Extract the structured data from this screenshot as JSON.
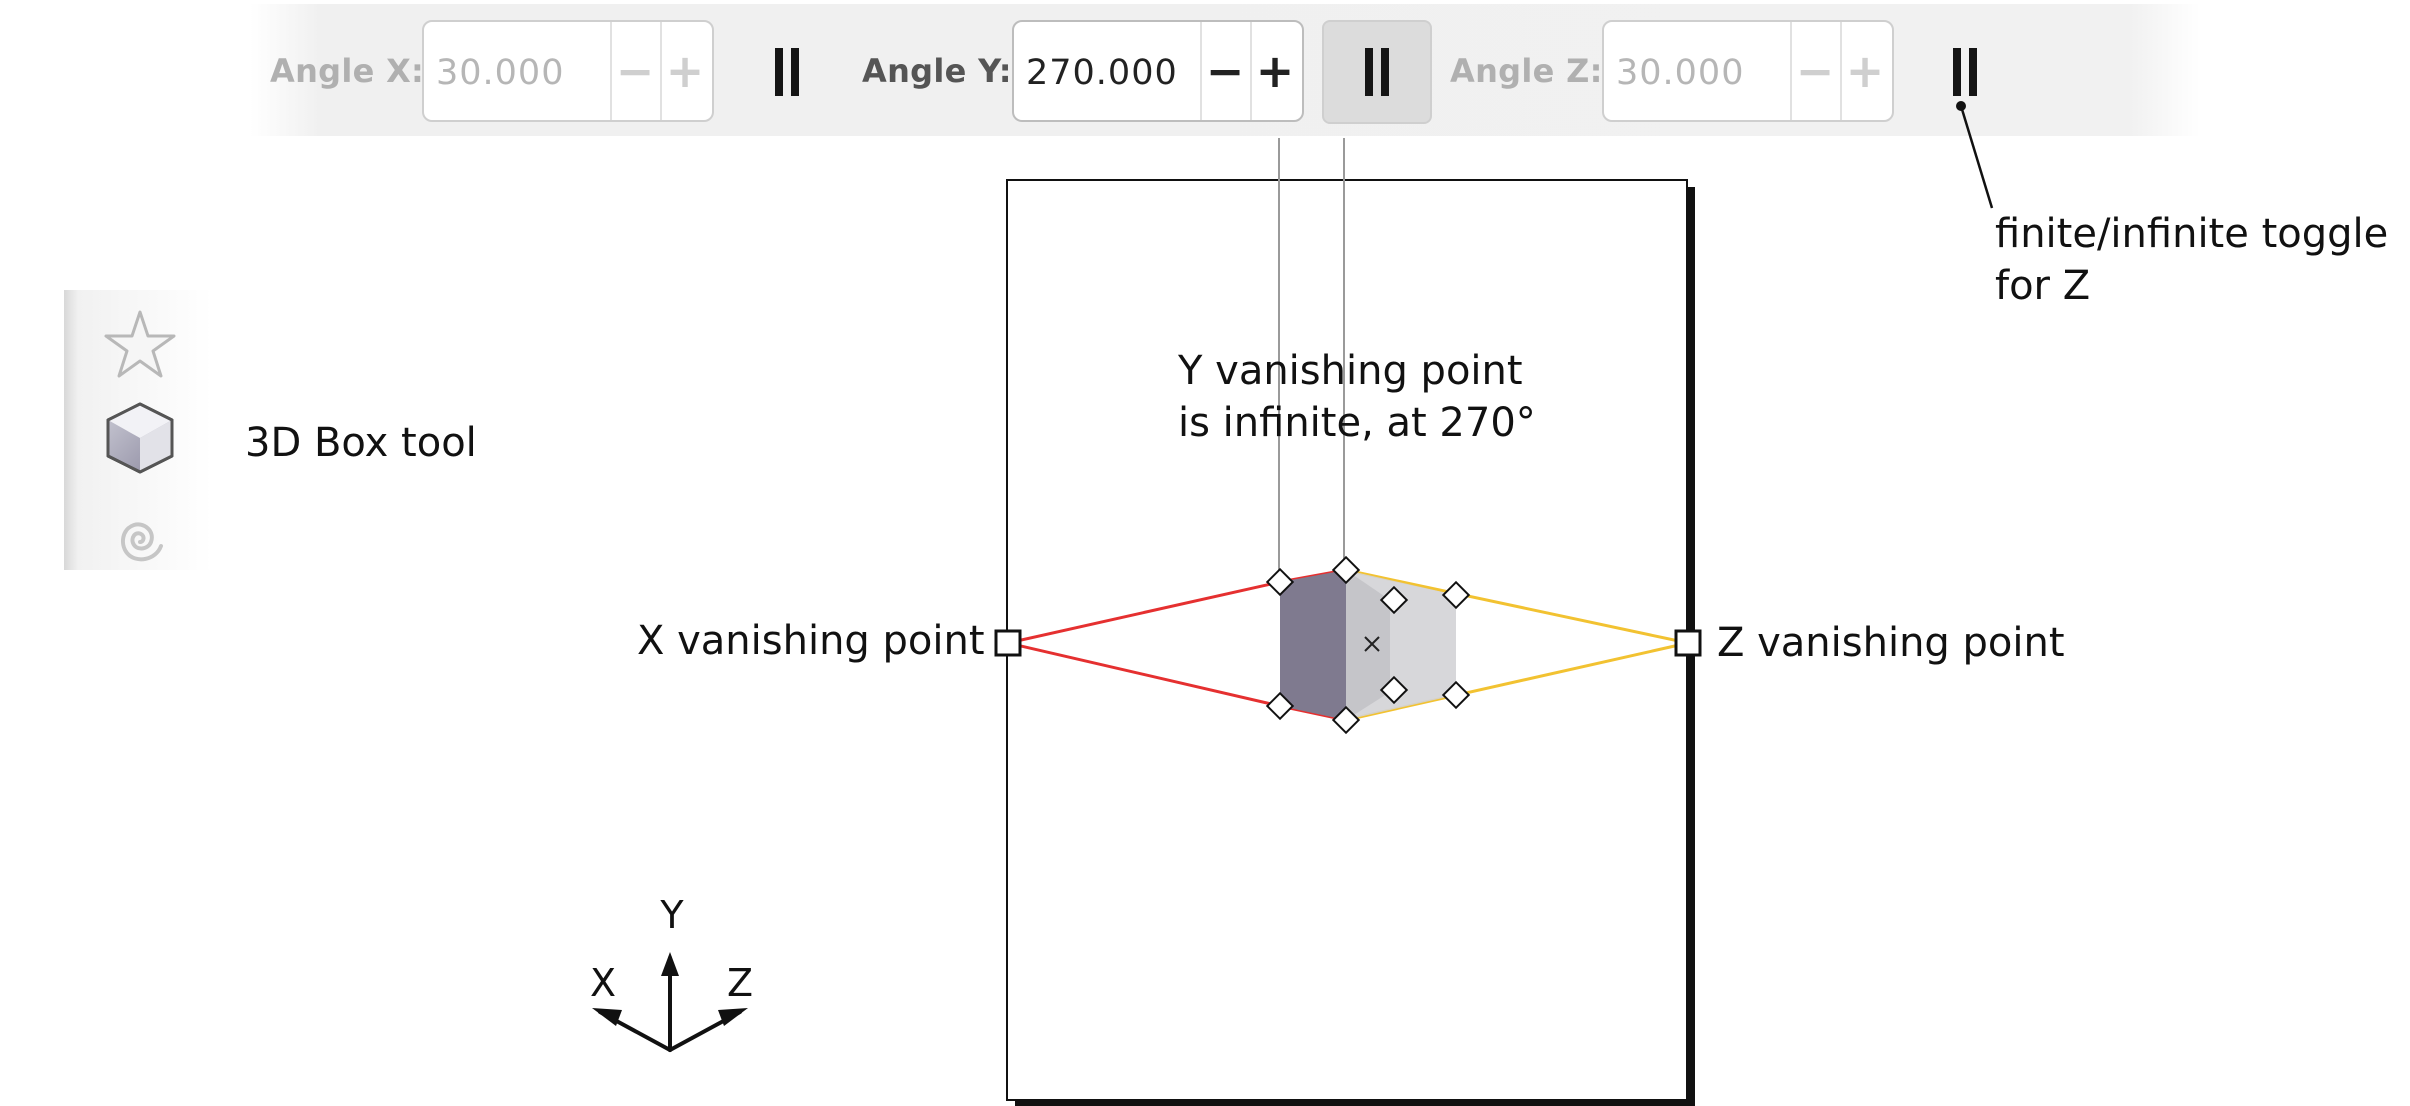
{
  "toolbar": {
    "angle_x": {
      "label": "Angle X:",
      "value": "30.000",
      "minus": "−",
      "plus": "+",
      "enabled": false
    },
    "angle_y": {
      "label": "Angle Y:",
      "value": "270.000",
      "minus": "−",
      "plus": "+",
      "enabled": true
    },
    "angle_z": {
      "label": "Angle Z:",
      "value": "30.000",
      "minus": "−",
      "plus": "+",
      "enabled": false
    },
    "toggle_y_pressed": true
  },
  "tools": [
    {
      "name": "star-polygon-tool",
      "active": false
    },
    {
      "name": "3d-box-tool",
      "active": true
    },
    {
      "name": "spiral-tool",
      "active": false
    }
  ],
  "annotations": {
    "box_tool": "3D Box tool",
    "toggle_z_line1": "finite/infinite toggle",
    "toggle_z_line2": "for Z",
    "y_vp_line1": "Y vanishing point",
    "y_vp_line2": "is infinite, at 270°",
    "x_vp": "X vanishing point",
    "z_vp": "Z vanishing point"
  },
  "axes": {
    "x": "X",
    "y": "Y",
    "z": "Z"
  },
  "colors": {
    "x_perspective_line": "#e53030",
    "z_perspective_line": "#f2c231",
    "box_dark_face": "#7f7a8f",
    "box_light_face": "#c9c9cc",
    "guide_line": "#9a9a9a"
  }
}
